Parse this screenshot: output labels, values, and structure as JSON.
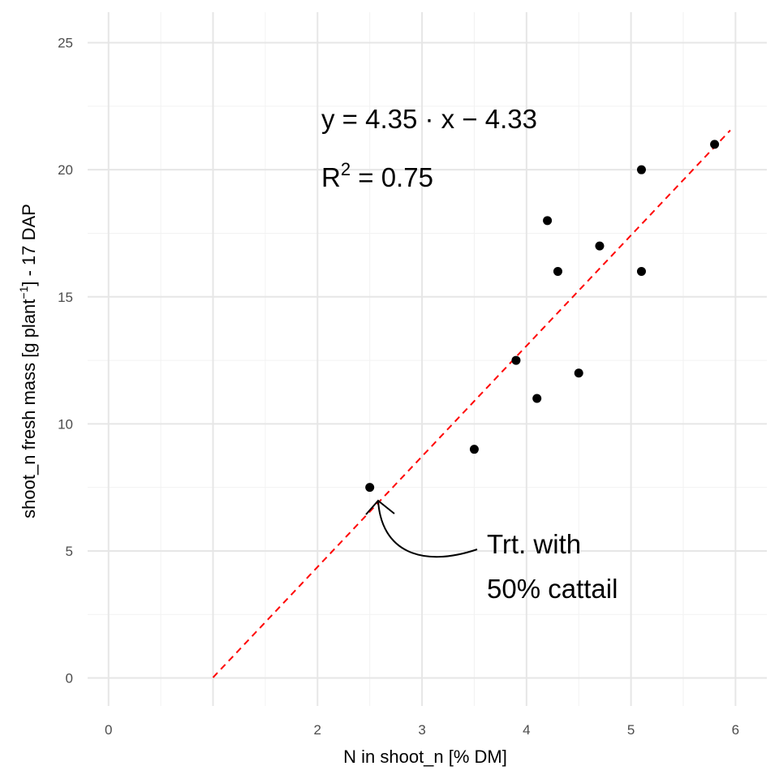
{
  "chart_data": {
    "type": "scatter",
    "xlabel": "N in shoot_n [% DM]",
    "ylabel": {
      "pre": "shoot_n fresh mass [g plant",
      "sup": "−1",
      "post": "] - 17 DAP"
    },
    "x_ticks": [
      0,
      1,
      2,
      3,
      4,
      5,
      6
    ],
    "x_tick_labels": [
      "0",
      "",
      "2",
      "3",
      "4",
      "5",
      "6"
    ],
    "y_ticks": [
      0,
      5,
      10,
      15,
      20,
      25
    ],
    "y_tick_labels": [
      "0",
      "5",
      "10",
      "15",
      "20",
      "25"
    ],
    "xlim": [
      -0.2,
      6.3
    ],
    "ylim": [
      -1.1,
      26.2
    ],
    "grid": true,
    "points": [
      {
        "x": 2.5,
        "y": 7.5
      },
      {
        "x": 3.5,
        "y": 9
      },
      {
        "x": 3.9,
        "y": 12.5
      },
      {
        "x": 4.1,
        "y": 11
      },
      {
        "x": 4.2,
        "y": 18
      },
      {
        "x": 4.3,
        "y": 16
      },
      {
        "x": 4.5,
        "y": 12
      },
      {
        "x": 4.7,
        "y": 17
      },
      {
        "x": 5.1,
        "y": 20
      },
      {
        "x": 5.1,
        "y": 16
      },
      {
        "x": 5.8,
        "y": 21
      }
    ],
    "fit_line": {
      "slope": 4.35,
      "intercept": -4.33,
      "x_range": [
        1,
        5.95
      ],
      "color": "#ff0000",
      "style": "dashed"
    },
    "point_color": "#000000",
    "equation": {
      "line1": "y = 4.35 · x − 4.33",
      "r2_base": "R",
      "r2_sup": "2",
      "r2_rest": " = 0.75"
    },
    "annotation": {
      "line1": "Trt. with",
      "line2": "50% cattail",
      "target": {
        "x": 2.55,
        "y": 7.1
      }
    }
  }
}
